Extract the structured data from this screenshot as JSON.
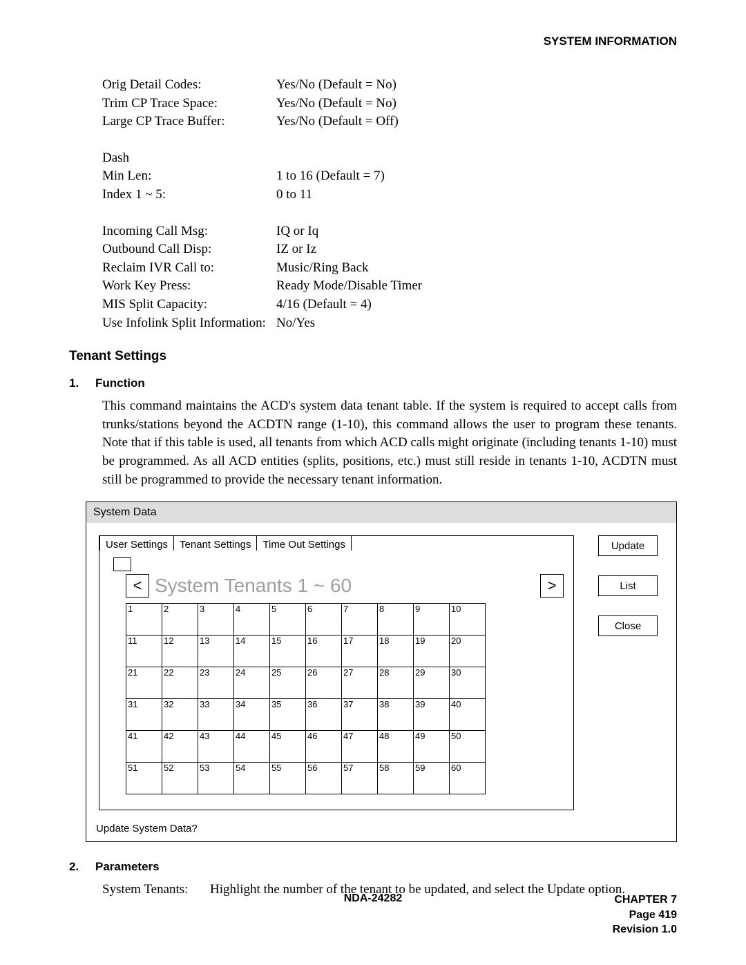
{
  "header": {
    "title": "SYSTEM INFORMATION"
  },
  "params1": [
    {
      "label": "Orig Detail Codes:",
      "value": "Yes/No (Default = No)"
    },
    {
      "label": "Trim CP Trace Space:",
      "value": "Yes/No (Default = No)"
    },
    {
      "label": "Large CP Trace Buffer:",
      "value": "Yes/No (Default = Off)"
    }
  ],
  "params2_header": "Dash",
  "params2": [
    {
      "label": "Min Len:",
      "value": "1 to 16 (Default = 7)"
    },
    {
      "label": "Index 1 ~ 5:",
      "value": "0 to 11"
    }
  ],
  "params3": [
    {
      "label": "Incoming Call Msg:",
      "value": "IQ or Iq"
    },
    {
      "label": "Outbound Call Disp:",
      "value": "IZ or Iz"
    },
    {
      "label": "Reclaim IVR Call to:",
      "value": "Music/Ring Back"
    },
    {
      "label": "Work Key Press:",
      "value": "Ready Mode/Disable Timer"
    },
    {
      "label": "MIS Split Capacity:",
      "value": "4/16 (Default = 4)"
    },
    {
      "label": "Use Infolink Split Information:",
      "value": "No/Yes"
    }
  ],
  "section": {
    "heading": "Tenant Settings"
  },
  "item1": {
    "num": "1.",
    "title": "Function",
    "text": "This command maintains the ACD's system data tenant table. If the system is required to accept calls from trunks/stations beyond the ACDTN range (1-10), this command allows the user to program these tenants. Note that if this table is used, all tenants from which ACD calls might originate (including tenants 1-10) must be programmed. As all ACD entities (splits, positions, etc.) must still reside in tenants 1-10, ACDTN must still be programmed to provide the necessary tenant information."
  },
  "diagram": {
    "window_title": "System Data",
    "tabs": [
      "User Settings",
      "Tenant Settings",
      "Time Out Settings"
    ],
    "title": "System Tenants 1 ~ 60",
    "arrow_left": "<",
    "arrow_right": ">",
    "grid_rows": 6,
    "grid_cols": 10,
    "grid_start": 1,
    "buttons": {
      "update": "Update",
      "list": "List",
      "close": "Close"
    },
    "footer": "Update System Data?",
    "colors": {
      "title_gray": "#9e9e9e",
      "header_fill": "#dddddd",
      "border": "#000000"
    },
    "fontsizes": {
      "window_title": 16,
      "tabs": 15,
      "title": 28,
      "grid": 13,
      "buttons": 15,
      "footer": 15
    }
  },
  "item2": {
    "num": "2.",
    "title": "Parameters",
    "param_label": "System Tenants:",
    "param_text": "Highlight the number of the tenant to be updated, and select the Update option."
  },
  "footer": {
    "center": "NDA-24282",
    "chapter": "CHAPTER 7",
    "page": "Page 419",
    "revision": "Revision 1.0"
  }
}
